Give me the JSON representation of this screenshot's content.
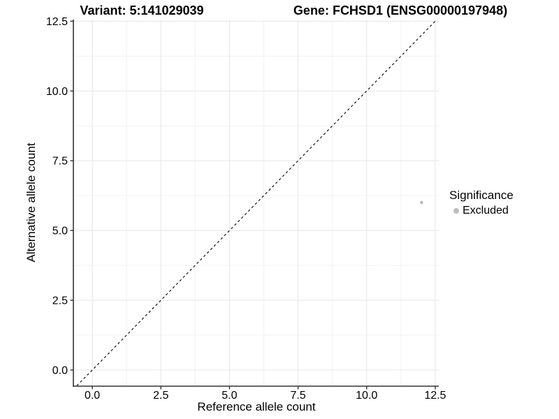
{
  "chart_data": {
    "type": "scatter",
    "title_left": "Variant: 5:141029039",
    "title_right": "Gene: FCHSD1 (ENSG00000197948)",
    "xlabel": "Reference allele count",
    "ylabel": "Alternative allele count",
    "xlim": [
      -0.69,
      12.63
    ],
    "ylim": [
      -0.58,
      12.56
    ],
    "ticks": {
      "values": [
        0,
        2.5,
        5,
        7.5,
        10,
        12.5
      ],
      "labels": [
        "0.0",
        "2.5",
        "5.0",
        "7.5",
        "10.0",
        "12.5"
      ]
    },
    "minor_ticks": [
      1.25,
      3.75,
      6.25,
      8.75,
      11.25
    ],
    "grid": true,
    "points": [
      {
        "x": 12,
        "y": 6,
        "series": "Excluded"
      }
    ],
    "identity_line": {
      "slope": 1,
      "intercept": 0,
      "style": "dashed"
    },
    "legend": {
      "title": "Significance",
      "position": "right",
      "items": [
        {
          "label": "Excluded",
          "color": "#bdbdbd"
        }
      ]
    },
    "colors": {
      "point_excluded": "#bdbdbd",
      "axis_line": "#333333",
      "grid_major": "#e6e6e6",
      "grid_minor": "#f2f2f2",
      "identity_line": "#000000",
      "text": "#000000"
    }
  }
}
